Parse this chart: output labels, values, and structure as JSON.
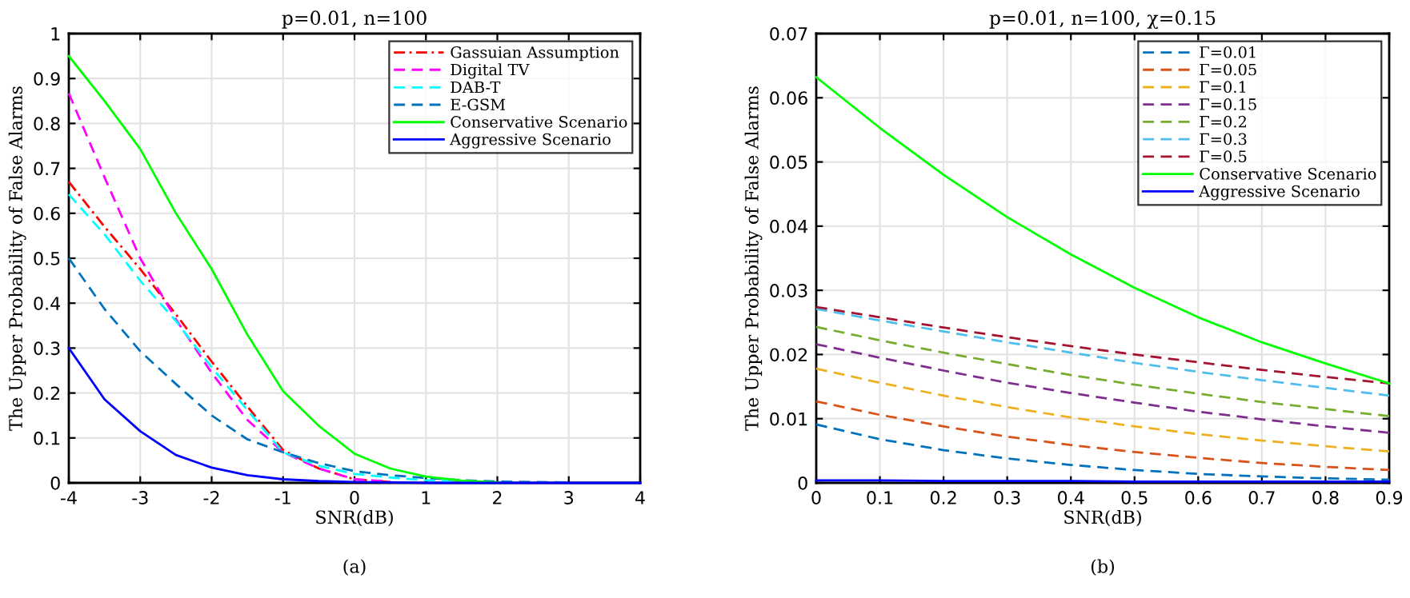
{
  "chart_data": [
    {
      "type": "line",
      "title": "p=0.01, n=100",
      "xlabel": "SNR(dB)",
      "ylabel": "The Upper Probability of False Alarms",
      "annotations": [
        "(a)"
      ],
      "x": [
        -4,
        -3.5,
        -3,
        -2.5,
        -2,
        -1.5,
        -1,
        -0.5,
        0,
        0.5,
        1,
        1.5,
        2,
        3,
        4
      ],
      "xlim": [
        -4,
        4
      ],
      "xticks": [
        -4,
        -3,
        -2,
        -1,
        0,
        1,
        2,
        3,
        4
      ],
      "ylim": [
        0,
        1
      ],
      "yticks": [
        0,
        0.1,
        0.2,
        0.3,
        0.4,
        0.5,
        0.6,
        0.7,
        0.8,
        0.9,
        1
      ],
      "grid": true,
      "legend": "top right",
      "marker": "none",
      "series": [
        {
          "name": "Gassuian Assumption",
          "color": "#ff0000",
          "line_style": "dashdot",
          "values": [
            0.67,
            0.57,
            0.476,
            0.375,
            0.27,
            0.17,
            0.073,
            0.032,
            0.008,
            0.002,
            null,
            null,
            null,
            null,
            null
          ]
        },
        {
          "name": "Digital TV",
          "color": "#ff00ff",
          "line_style": "dashed",
          "values": [
            0.867,
            0.68,
            0.5,
            0.364,
            0.245,
            0.14,
            0.068,
            0.032,
            0.008,
            0.003,
            null,
            null,
            null,
            null,
            null
          ]
        },
        {
          "name": "DAB-T",
          "color": "#00ffff",
          "line_style": "dashed",
          "values": [
            0.642,
            0.553,
            0.45,
            0.36,
            0.257,
            0.162,
            0.068,
            0.038,
            0.02,
            0.012,
            0.006,
            0.003,
            0.001,
            null,
            null
          ]
        },
        {
          "name": "E-GSM",
          "color": "#0072bd",
          "line_style": "dashed",
          "values": [
            0.5,
            0.387,
            0.293,
            0.22,
            0.15,
            0.097,
            0.068,
            0.044,
            0.026,
            0.017,
            0.011,
            0.006,
            0.003,
            0.001,
            null
          ]
        },
        {
          "name": "Conservative Scenario",
          "color": "#00ff00",
          "line_style": "solid",
          "values": [
            0.95,
            0.85,
            0.743,
            0.6,
            0.476,
            0.33,
            0.204,
            0.127,
            0.065,
            0.032,
            0.014,
            0.005,
            0.001,
            null,
            null
          ]
        },
        {
          "name": "Aggressive Scenario",
          "color": "#0000ff",
          "line_style": "solid",
          "values": [
            0.3,
            0.186,
            0.115,
            0.062,
            0.034,
            0.017,
            0.008,
            0.004,
            0.002,
            0.001,
            0,
            0,
            0,
            0,
            0
          ]
        }
      ]
    },
    {
      "type": "line",
      "title": "p=0.01, n=100, χ=0.15",
      "xlabel": "SNR(dB)",
      "ylabel": "The Upper Probability of False Alarms",
      "annotations": [
        "(b)"
      ],
      "x": [
        0,
        0.1,
        0.2,
        0.3,
        0.4,
        0.5,
        0.6,
        0.7,
        0.8,
        0.9
      ],
      "xlim": [
        0,
        0.9
      ],
      "xticks": [
        0,
        0.1,
        0.2,
        0.3,
        0.4,
        0.5,
        0.6,
        0.7,
        0.8,
        0.9
      ],
      "ylim": [
        0,
        0.07
      ],
      "yticks": [
        0,
        0.01,
        0.02,
        0.03,
        0.04,
        0.05,
        0.06,
        0.07
      ],
      "grid": true,
      "legend": "top right",
      "marker": "none",
      "series": [
        {
          "name": "Γ=0.01",
          "color": "#0072bd",
          "line_style": "dashed",
          "values": [
            0.0091,
            0.0068,
            0.0051,
            0.0038,
            0.0028,
            0.002,
            0.0014,
            0.001,
            0.0007,
            0.0005
          ]
        },
        {
          "name": "Γ=0.05",
          "color": "#d95319",
          "line_style": "dashed",
          "values": [
            0.0127,
            0.0106,
            0.0088,
            0.0072,
            0.0059,
            0.0048,
            0.0039,
            0.0031,
            0.0025,
            0.002
          ]
        },
        {
          "name": "Γ=0.1",
          "color": "#edb120",
          "line_style": "dashed",
          "values": [
            0.0178,
            0.0156,
            0.0136,
            0.0118,
            0.0102,
            0.0088,
            0.0076,
            0.0066,
            0.0057,
            0.0049
          ]
        },
        {
          "name": "Γ=0.15",
          "color": "#7e2f8e",
          "line_style": "dashed",
          "values": [
            0.0216,
            0.0195,
            0.0175,
            0.0156,
            0.014,
            0.0125,
            0.0111,
            0.0099,
            0.0088,
            0.0078
          ]
        },
        {
          "name": "Γ=0.2",
          "color": "#77ac30",
          "line_style": "dashed",
          "values": [
            0.0243,
            0.0222,
            0.0203,
            0.0185,
            0.0168,
            0.0153,
            0.0139,
            0.0126,
            0.0115,
            0.0104
          ]
        },
        {
          "name": "Γ=0.3",
          "color": "#4dbeee",
          "line_style": "dashed",
          "values": [
            0.0271,
            0.0253,
            0.0236,
            0.0219,
            0.0203,
            0.0187,
            0.0173,
            0.016,
            0.0148,
            0.0136
          ]
        },
        {
          "name": "Γ=0.5",
          "color": "#a2142f",
          "line_style": "dashed",
          "values": [
            0.0274,
            0.0258,
            0.0242,
            0.0227,
            0.0213,
            0.02,
            0.0188,
            0.0176,
            0.0165,
            0.0155
          ]
        },
        {
          "name": "Conservative Scenario",
          "color": "#00ff00",
          "line_style": "solid",
          "values": [
            0.0632,
            0.0553,
            0.048,
            0.0414,
            0.0356,
            0.0304,
            0.0258,
            0.0219,
            0.0186,
            0.0155
          ]
        },
        {
          "name": "Aggressive Scenario",
          "color": "#0000ff",
          "line_style": "solid",
          "values": [
            0.0004,
            0.0004,
            0.0003,
            0.0003,
            0.0003,
            0.0002,
            0.0002,
            0.0002,
            0.0002,
            0.0002
          ]
        }
      ]
    }
  ]
}
